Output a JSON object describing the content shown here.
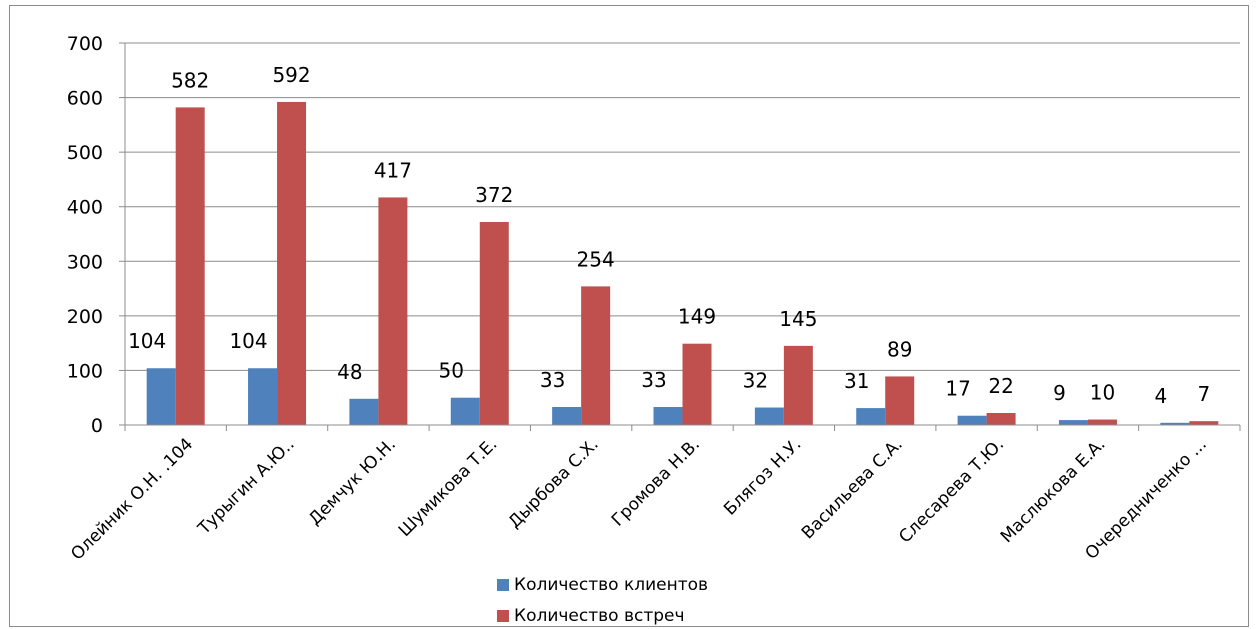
{
  "chart_data": {
    "type": "bar",
    "categories": [
      "Олейник О.Н. .104",
      "Турыгин А.Ю..",
      "Демчук Ю.Н.",
      "Шумикова Т.Е.",
      "Дырбова С.Х.",
      "Громова Н.В.",
      "Блягоз Н.У.",
      "Васильева С.А.",
      "Слесарева Т.Ю.",
      "Маслюкова Е.А.",
      "Очередниченко ..."
    ],
    "series": [
      {
        "name": "Количество клиентов",
        "color": "#4F81BD",
        "values": [
          104,
          104,
          48,
          50,
          33,
          33,
          32,
          31,
          17,
          9,
          4
        ]
      },
      {
        "name": "Количество встреч",
        "color": "#C0504D",
        "values": [
          582,
          592,
          417,
          372,
          254,
          149,
          145,
          89,
          22,
          10,
          7
        ]
      }
    ],
    "yticks": [
      "0",
      "100",
      "200",
      "300",
      "400",
      "500",
      "600",
      "700"
    ],
    "ylim": [
      0,
      700
    ],
    "grid": true,
    "legend": "bottom-center"
  }
}
